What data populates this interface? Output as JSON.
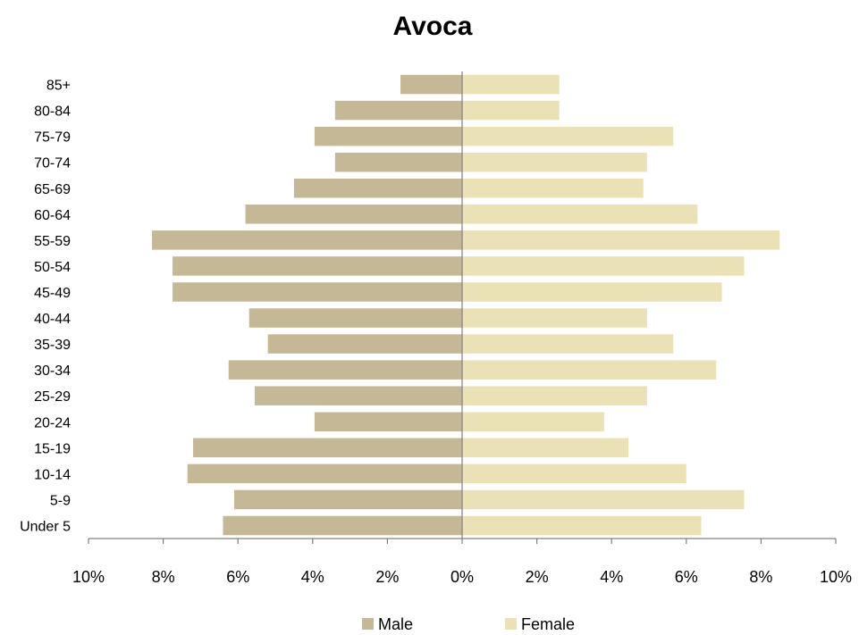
{
  "chart_data": {
    "type": "bar",
    "orientation": "horizontal",
    "title": "Avoca",
    "categories": [
      "Under 5",
      "5-9",
      "10-14",
      "15-19",
      "20-24",
      "25-29",
      "30-34",
      "35-39",
      "40-44",
      "45-49",
      "50-54",
      "55-59",
      "60-64",
      "65-69",
      "70-74",
      "75-79",
      "80-84",
      "85+"
    ],
    "series": [
      {
        "name": "Male",
        "color": "#c4b896",
        "values": [
          6.4,
          6.1,
          7.35,
          7.2,
          3.95,
          5.55,
          6.25,
          5.2,
          5.7,
          7.75,
          7.75,
          8.3,
          5.8,
          4.5,
          3.4,
          3.95,
          3.4,
          1.65
        ]
      },
      {
        "name": "Female",
        "color": "#ebe1b7",
        "values": [
          6.4,
          7.55,
          6.0,
          4.45,
          3.8,
          4.95,
          6.8,
          5.65,
          4.95,
          6.95,
          7.55,
          8.5,
          6.3,
          4.85,
          4.95,
          5.65,
          2.6,
          2.6
        ]
      }
    ],
    "x_ticks": [
      "10%",
      "8%",
      "6%",
      "4%",
      "2%",
      "0%",
      "2%",
      "4%",
      "6%",
      "8%",
      "10%"
    ],
    "xlim": [
      -10,
      10
    ],
    "legend_position": "bottom",
    "grid": false
  }
}
